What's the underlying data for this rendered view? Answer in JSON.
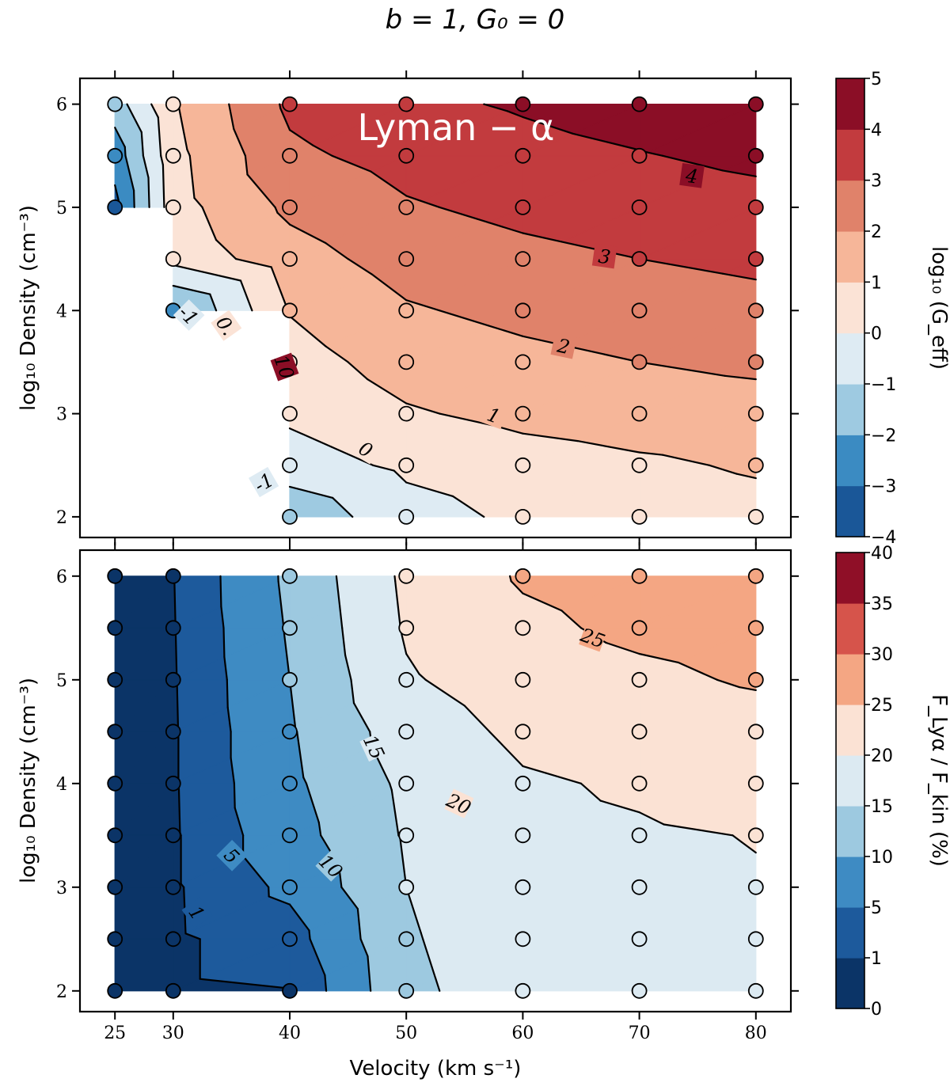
{
  "figure": {
    "title": "b = 1, G₀ = 0",
    "xlabel": "Velocity (km s⁻¹)",
    "x_ticks": [
      "25",
      "30",
      "40",
      "50",
      "60",
      "70",
      "80"
    ],
    "y_ticks": [
      "2",
      "3",
      "4",
      "5",
      "6"
    ]
  },
  "chart_data": [
    {
      "type": "heatmap",
      "subtype": "filled-contour",
      "panel": "top",
      "annotation": "Lyman − α",
      "xlabel": "",
      "ylabel": "log₁₀ Density (cm⁻³)",
      "colorbar_label": "log₁₀ (G_eff)",
      "xlim": [
        22,
        83
      ],
      "ylim": [
        1.8,
        6.25
      ],
      "levels": [
        -4,
        -3,
        -2,
        -1,
        0,
        1,
        2,
        3,
        4,
        5
      ],
      "colorbar_ticks": [
        "−4",
        "−3",
        "−2",
        "−1",
        "0",
        "1",
        "2",
        "3",
        "4",
        "5"
      ],
      "colors": [
        "#1a5798",
        "#3b8bc2",
        "#9ecae1",
        "#deebf3",
        "#fbe3d6",
        "#f6b699",
        "#e0826a",
        "#c23b3e",
        "#8b0e26"
      ],
      "contour_labels": [
        "-1",
        "0",
        "1",
        "2",
        "3",
        "4",
        "-1",
        "0.",
        "10"
      ],
      "x": [
        25,
        30,
        40,
        50,
        60,
        70,
        80
      ],
      "y": [
        2,
        2.5,
        3,
        3.5,
        4,
        4.5,
        5,
        5.5,
        6
      ],
      "z": [
        [
          null,
          null,
          -1.7,
          -0.4,
          0.2,
          0.5,
          0.7
        ],
        [
          null,
          null,
          -0.5,
          0.2,
          0.6,
          0.85,
          1.1
        ],
        [
          null,
          null,
          0.2,
          0.9,
          1.25,
          1.45,
          1.6
        ],
        [
          null,
          null,
          0.6,
          1.4,
          1.75,
          2.0,
          2.2
        ],
        [
          null,
          -2.2,
          1.05,
          1.9,
          2.25,
          2.5,
          2.7
        ],
        [
          null,
          0.3,
          1.6,
          2.4,
          2.75,
          3.0,
          3.2
        ],
        [
          -3.3,
          0.6,
          2.2,
          2.9,
          3.25,
          3.5,
          3.7
        ],
        [
          -2.6,
          0.7,
          2.8,
          3.35,
          3.7,
          3.95,
          4.2
        ],
        [
          -1.5,
          0.9,
          3.2,
          3.8,
          4.1,
          4.4,
          4.7
        ]
      ]
    },
    {
      "type": "heatmap",
      "subtype": "filled-contour",
      "panel": "bottom",
      "xlabel": "Velocity (km s⁻¹)",
      "ylabel": "log₁₀ Density (cm⁻³)",
      "colorbar_label": "F_Lyα / F_kin (%)",
      "xlim": [
        22,
        83
      ],
      "ylim": [
        1.8,
        6.25
      ],
      "levels": [
        0,
        1,
        5,
        10,
        15,
        20,
        25,
        30,
        35,
        40
      ],
      "colorbar_ticks": [
        "0",
        "1",
        "5",
        "10",
        "15",
        "20",
        "25",
        "30",
        "35",
        "40"
      ],
      "colors": [
        "#0b3467",
        "#1d5a9c",
        "#3e8bc3",
        "#9dc9e0",
        "#dceaf2",
        "#fbe2d4",
        "#f4a683",
        "#d6544b",
        "#8f0f27"
      ],
      "contour_labels": [
        "1",
        "5",
        "10",
        "15",
        "20",
        "25"
      ],
      "x": [
        25,
        30,
        40,
        50,
        60,
        70,
        80
      ],
      "y": [
        2,
        2.5,
        3,
        3.5,
        4,
        4.5,
        5,
        5.5,
        6
      ],
      "z": [
        [
          0.2,
          0.4,
          0.9,
          14,
          17.5,
          18.5,
          19
        ],
        [
          0.2,
          0.4,
          3,
          14.5,
          18,
          19,
          19.5
        ],
        [
          0.2,
          0.5,
          6,
          15,
          18.5,
          19.3,
          19.8
        ],
        [
          0.2,
          0.5,
          8,
          15.5,
          19,
          19.6,
          20.1
        ],
        [
          0.2,
          0.6,
          9,
          16,
          19.5,
          20.5,
          21.5
        ],
        [
          0.2,
          0.6,
          9.5,
          17.5,
          21,
          22,
          23
        ],
        [
          0.2,
          0.7,
          10,
          19.5,
          22.5,
          24,
          25.5
        ],
        [
          0.2,
          0.8,
          10.5,
          20.5,
          24,
          26,
          27
        ],
        [
          0.2,
          0.9,
          11,
          21,
          25.5,
          27,
          28
        ]
      ]
    }
  ]
}
